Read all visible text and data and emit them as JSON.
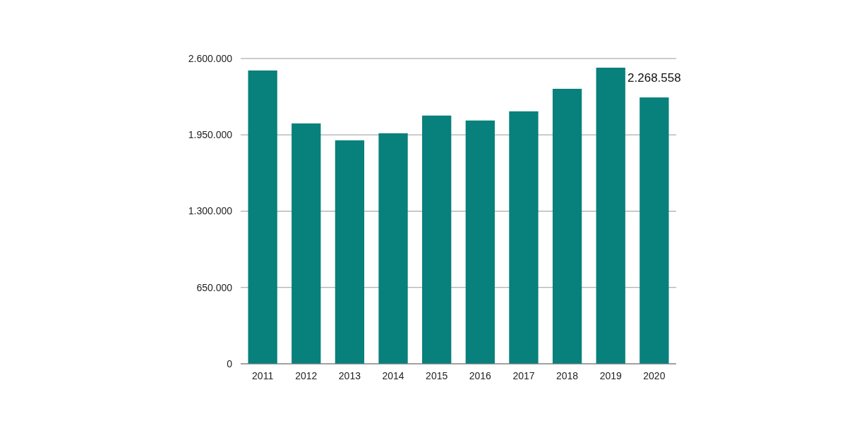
{
  "chart_data": {
    "type": "bar",
    "categories": [
      "2011",
      "2012",
      "2013",
      "2014",
      "2015",
      "2016",
      "2017",
      "2018",
      "2019",
      "2020"
    ],
    "values": [
      2498000,
      2047000,
      1903000,
      1963000,
      2114000,
      2072000,
      2150000,
      2342000,
      2522000,
      2268558
    ],
    "value_labels": [
      null,
      null,
      null,
      null,
      null,
      null,
      null,
      null,
      null,
      "2.268.558"
    ],
    "color": "#08807c",
    "ylim": [
      0,
      2600000
    ],
    "yticks": [
      0,
      {
        "value": 650000,
        "label": "650.000"
      },
      {
        "value": 1300000,
        "label": "1.300.000"
      },
      {
        "value": 1950000,
        "label": "1.950.000"
      },
      {
        "value": 2600000,
        "label": "2.600.000"
      }
    ],
    "grid": "y"
  }
}
